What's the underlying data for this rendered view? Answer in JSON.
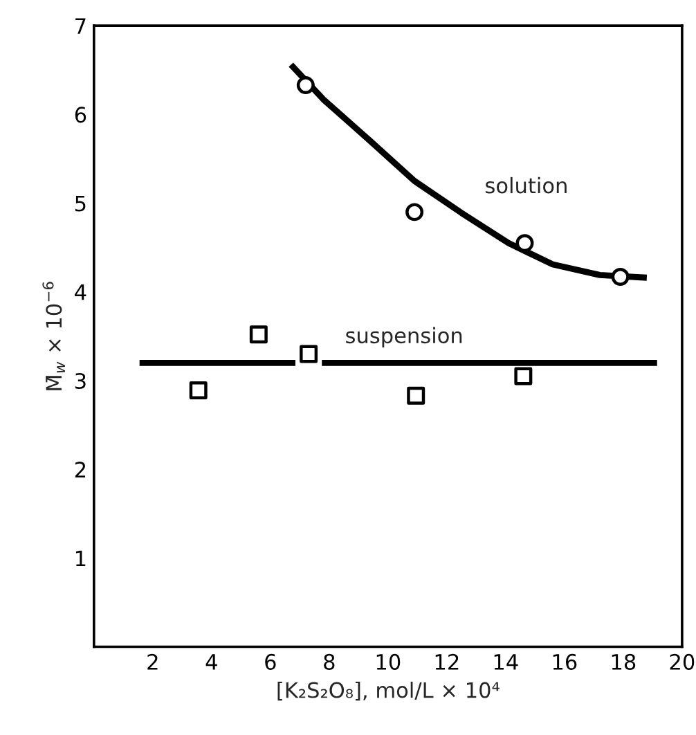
{
  "chart_data": {
    "type": "scatter",
    "xlabel": "[K₂S₂O₈], mol/L × 10⁴",
    "ylabel": "M̄$_{w}$ × 10$^{−6}$",
    "xlim": [
      0,
      20
    ],
    "xticks": [
      2,
      4,
      6,
      8,
      10,
      12,
      14,
      16,
      18,
      20
    ],
    "ylim": [
      0,
      7
    ],
    "yticks": [
      1,
      2,
      3,
      4,
      5,
      6,
      7
    ],
    "grid": false,
    "legend": false,
    "series": [
      {
        "marker": "circle",
        "color": "#000000",
        "x": [
          7.2,
          10.9,
          14.65,
          17.9
        ],
        "values": [
          6.33,
          4.9,
          4.55,
          4.17
        ]
      },
      {
        "type": "line",
        "name": "solution",
        "marker": "none",
        "color": "#000000",
        "x": [
          6.7,
          7.8,
          9.4,
          10.9,
          12.5,
          14.1,
          15.6,
          17.2,
          18.8
        ],
        "values": [
          6.56,
          6.17,
          5.7,
          5.25,
          4.89,
          4.55,
          4.31,
          4.19,
          4.16
        ]
      },
      {
        "marker": "square",
        "color": "#000000",
        "x": [
          3.55,
          5.6,
          7.3,
          10.95,
          14.6
        ],
        "values": [
          2.89,
          3.52,
          3.3,
          2.83,
          3.05
        ]
      },
      {
        "type": "line",
        "name": "suspension",
        "marker": "none",
        "color": "#000000",
        "x": [
          1.55,
          6.85,
          7.3,
          7.75,
          19.15
        ],
        "values": [
          3.2,
          3.2,
          null,
          3.2,
          3.2
        ]
      }
    ]
  }
}
